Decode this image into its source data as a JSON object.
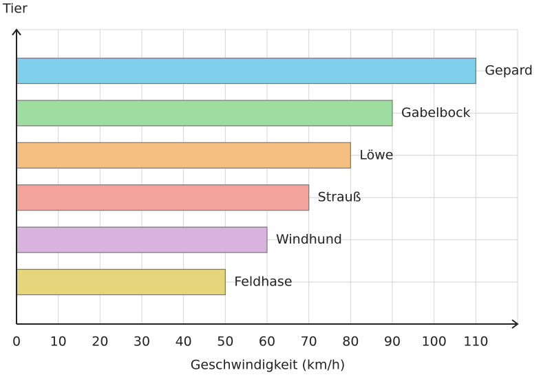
{
  "chart_data": {
    "type": "bar",
    "orientation": "horizontal",
    "x_label": "Geschwindigkeit (km/h)",
    "y_label": "Tier",
    "categories": [
      "Gepard",
      "Gabelbock",
      "Löwe",
      "Strauß",
      "Windhund",
      "Feldhase"
    ],
    "values": [
      110,
      90,
      80,
      70,
      60,
      50
    ],
    "colors": [
      "#7fcfea",
      "#9fdca0",
      "#f4bf80",
      "#f4a29c",
      "#d7b3dd",
      "#e6d67b"
    ],
    "xlim": [
      0,
      120
    ],
    "xticks": [
      0,
      10,
      20,
      30,
      40,
      50,
      60,
      70,
      80,
      90,
      100,
      110
    ],
    "grid": true
  }
}
